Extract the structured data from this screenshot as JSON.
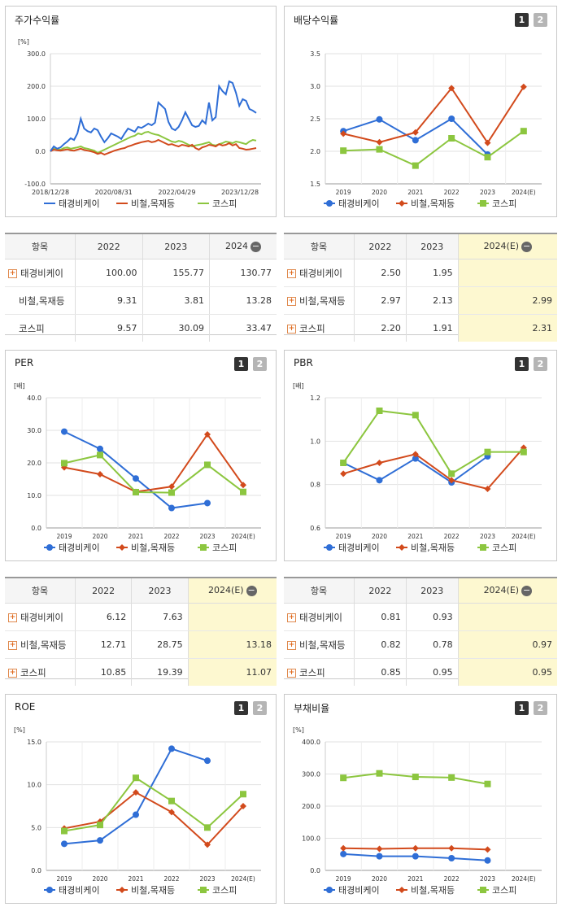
{
  "colors": {
    "company": "#2f6ed6",
    "industry": "#d24a1c",
    "kospi": "#8cc63f"
  },
  "legend": {
    "company": "태경비케이",
    "industry": "비철,목재등",
    "kospi": "코스피"
  },
  "page_buttons": {
    "one": "1",
    "two": "2"
  },
  "tables": {
    "stock": {
      "head": [
        "항목",
        "2022",
        "2023",
        "2024"
      ],
      "rows": [
        {
          "label": "태경비케이",
          "icon": true,
          "v": [
            "100.00",
            "155.77",
            "130.77"
          ]
        },
        {
          "label": "비철,목재등",
          "icon": false,
          "v": [
            "9.31",
            "3.81",
            "13.28"
          ]
        },
        {
          "label": "코스피",
          "icon": false,
          "v": [
            "9.57",
            "30.09",
            "33.47"
          ]
        }
      ]
    },
    "dividend": {
      "head": [
        "항목",
        "2022",
        "2023",
        "2024(E)"
      ],
      "rows": [
        {
          "label": "태경비케이",
          "icon": true,
          "v": [
            "2.50",
            "1.95",
            ""
          ]
        },
        {
          "label": "비철,목재등",
          "icon": true,
          "v": [
            "2.97",
            "2.13",
            "2.99"
          ]
        },
        {
          "label": "코스피",
          "icon": true,
          "v": [
            "2.20",
            "1.91",
            "2.31"
          ]
        }
      ]
    },
    "per": {
      "head": [
        "항목",
        "2022",
        "2023",
        "2024(E)"
      ],
      "rows": [
        {
          "label": "태경비케이",
          "icon": true,
          "v": [
            "6.12",
            "7.63",
            ""
          ]
        },
        {
          "label": "비철,목재등",
          "icon": true,
          "v": [
            "12.71",
            "28.75",
            "13.18"
          ]
        },
        {
          "label": "코스피",
          "icon": true,
          "v": [
            "10.85",
            "19.39",
            "11.07"
          ]
        }
      ]
    },
    "pbr": {
      "head": [
        "항목",
        "2022",
        "2023",
        "2024(E)"
      ],
      "rows": [
        {
          "label": "태경비케이",
          "icon": true,
          "v": [
            "0.81",
            "0.93",
            ""
          ]
        },
        {
          "label": "비철,목재등",
          "icon": true,
          "v": [
            "0.82",
            "0.78",
            "0.97"
          ]
        },
        {
          "label": "코스피",
          "icon": true,
          "v": [
            "0.85",
            "0.95",
            "0.95"
          ]
        }
      ]
    }
  },
  "chart_data": [
    {
      "id": "stock",
      "type": "line",
      "title": "주가수익률",
      "unit": "[%]",
      "ylim": [
        -100,
        300
      ],
      "yticks": [
        -100,
        0,
        100,
        200,
        300
      ],
      "ytick_labels": [
        "-100.0",
        "0.0",
        "100.0",
        "200.0",
        "300.0"
      ],
      "xtick_labels": [
        "2018/12/28",
        "2020/08/31",
        "2022/04/29",
        "2023/12/28"
      ],
      "xtick_pos": [
        0,
        0.3,
        0.6,
        0.9
      ],
      "grid": true,
      "legend_position": "bottom",
      "series": [
        {
          "name": "태경비케이",
          "key": "company",
          "values": [
            0,
            15,
            8,
            12,
            22,
            30,
            40,
            35,
            55,
            100,
            70,
            62,
            58,
            70,
            65,
            45,
            28,
            40,
            55,
            50,
            45,
            38,
            55,
            70,
            65,
            60,
            75,
            72,
            78,
            85,
            80,
            88,
            150,
            140,
            130,
            90,
            70,
            65,
            75,
            95,
            120,
            100,
            80,
            75,
            78,
            95,
            85,
            150,
            95,
            105,
            200,
            185,
            175,
            215,
            210,
            180,
            140,
            160,
            155,
            130,
            125,
            118
          ]
        },
        {
          "name": "비철,목재등",
          "key": "industry",
          "values": [
            0,
            5,
            3,
            2,
            4,
            6,
            3,
            2,
            5,
            8,
            4,
            2,
            0,
            -3,
            -8,
            -5,
            -10,
            -6,
            -2,
            2,
            5,
            8,
            10,
            15,
            18,
            22,
            25,
            28,
            30,
            32,
            28,
            30,
            35,
            30,
            25,
            20,
            22,
            18,
            15,
            20,
            18,
            15,
            20,
            10,
            5,
            12,
            15,
            20,
            18,
            15,
            22,
            18,
            20,
            25,
            18,
            22,
            10,
            8,
            5,
            6,
            8,
            10
          ]
        },
        {
          "name": "코스피",
          "key": "kospi",
          "values": [
            0,
            8,
            6,
            5,
            10,
            12,
            8,
            10,
            12,
            15,
            10,
            8,
            5,
            2,
            -5,
            0,
            5,
            10,
            15,
            20,
            25,
            30,
            35,
            40,
            45,
            48,
            55,
            52,
            58,
            60,
            55,
            52,
            50,
            45,
            40,
            35,
            30,
            28,
            32,
            30,
            25,
            20,
            15,
            18,
            20,
            22,
            25,
            28,
            20,
            18,
            22,
            25,
            30,
            28,
            25,
            30,
            28,
            25,
            22,
            30,
            35,
            33
          ]
        }
      ]
    },
    {
      "id": "dividend",
      "type": "line",
      "title": "배당수익률",
      "unit": "",
      "ylim": [
        1.5,
        3.5
      ],
      "yticks": [
        1.5,
        2.0,
        2.5,
        3.0,
        3.5
      ],
      "ytick_labels": [
        "1.5",
        "2.0",
        "2.5",
        "3.0",
        "3.5"
      ],
      "categories": [
        "2019",
        "2020",
        "2021",
        "2022",
        "2023",
        "2024(E)"
      ],
      "grid": true,
      "legend_position": "bottom",
      "series": [
        {
          "name": "태경비케이",
          "key": "company",
          "values": [
            2.31,
            2.49,
            2.17,
            2.5,
            1.95,
            null
          ]
        },
        {
          "name": "비철,목재등",
          "key": "industry",
          "values": [
            2.27,
            2.14,
            2.29,
            2.97,
            2.13,
            2.99
          ]
        },
        {
          "name": "코스피",
          "key": "kospi",
          "values": [
            2.01,
            2.03,
            1.78,
            2.2,
            1.91,
            2.31
          ]
        }
      ]
    },
    {
      "id": "per",
      "type": "line",
      "title": "PER",
      "unit": "[배]",
      "ylim": [
        0,
        40
      ],
      "yticks": [
        0,
        10,
        20,
        30,
        40
      ],
      "ytick_labels": [
        "0.0",
        "10.0",
        "20.0",
        "30.0",
        "40.0"
      ],
      "categories": [
        "2019",
        "2020",
        "2021",
        "2022",
        "2023",
        "2024(E)"
      ],
      "grid": true,
      "legend_position": "bottom",
      "series": [
        {
          "name": "태경비케이",
          "key": "company",
          "values": [
            29.6,
            24.3,
            15.2,
            6.12,
            7.63,
            null
          ]
        },
        {
          "name": "비철,목재등",
          "key": "industry",
          "values": [
            18.6,
            16.5,
            11.1,
            12.71,
            28.75,
            13.18
          ]
        },
        {
          "name": "코스피",
          "key": "kospi",
          "values": [
            19.9,
            22.4,
            11.0,
            10.85,
            19.39,
            11.07
          ]
        }
      ]
    },
    {
      "id": "pbr",
      "type": "line",
      "title": "PBR",
      "unit": "[배]",
      "ylim": [
        0.6,
        1.2
      ],
      "yticks": [
        0.6,
        0.8,
        1.0,
        1.2
      ],
      "ytick_labels": [
        "0.6",
        "0.8",
        "1.0",
        "1.2"
      ],
      "categories": [
        "2019",
        "2020",
        "2021",
        "2022",
        "2023",
        "2024(E)"
      ],
      "grid": true,
      "legend_position": "bottom",
      "series": [
        {
          "name": "태경비케이",
          "key": "company",
          "values": [
            0.9,
            0.82,
            0.92,
            0.81,
            0.93,
            null
          ]
        },
        {
          "name": "비철,목재등",
          "key": "industry",
          "values": [
            0.85,
            0.9,
            0.94,
            0.82,
            0.78,
            0.97
          ]
        },
        {
          "name": "코스피",
          "key": "kospi",
          "values": [
            0.9,
            1.14,
            1.12,
            0.85,
            0.95,
            0.95
          ]
        }
      ]
    },
    {
      "id": "roe",
      "type": "line",
      "title": "ROE",
      "unit": "[%]",
      "ylim": [
        0,
        15
      ],
      "yticks": [
        0,
        5,
        10,
        15
      ],
      "ytick_labels": [
        "0.0",
        "5.0",
        "10.0",
        "15.0"
      ],
      "categories": [
        "2019",
        "2020",
        "2021",
        "2022",
        "2023",
        "2024(E)"
      ],
      "grid": true,
      "legend_position": "bottom",
      "series": [
        {
          "name": "태경비케이",
          "key": "company",
          "values": [
            3.1,
            3.5,
            6.5,
            14.2,
            12.8,
            null
          ]
        },
        {
          "name": "비철,목재등",
          "key": "industry",
          "values": [
            4.9,
            5.7,
            9.1,
            6.8,
            3.0,
            7.5
          ]
        },
        {
          "name": "코스피",
          "key": "kospi",
          "values": [
            4.6,
            5.3,
            10.8,
            8.1,
            5.0,
            8.9
          ]
        }
      ]
    },
    {
      "id": "debt",
      "type": "line",
      "title": "부채비율",
      "unit": "[%]",
      "ylim": [
        0,
        400
      ],
      "yticks": [
        0,
        100,
        200,
        300,
        400
      ],
      "ytick_labels": [
        "0.0",
        "100.0",
        "200.0",
        "300.0",
        "400.0"
      ],
      "categories": [
        "2019",
        "2020",
        "2021",
        "2022",
        "2023",
        "2024(E)"
      ],
      "grid": true,
      "legend_position": "bottom",
      "series": [
        {
          "name": "태경비케이",
          "key": "company",
          "values": [
            51,
            44,
            44,
            38,
            31,
            null
          ]
        },
        {
          "name": "비철,목재등",
          "key": "industry",
          "values": [
            69,
            67,
            69,
            69,
            65,
            null
          ]
        },
        {
          "name": "코스피",
          "key": "kospi",
          "values": [
            288,
            302,
            291,
            289,
            269,
            null
          ]
        }
      ]
    }
  ]
}
